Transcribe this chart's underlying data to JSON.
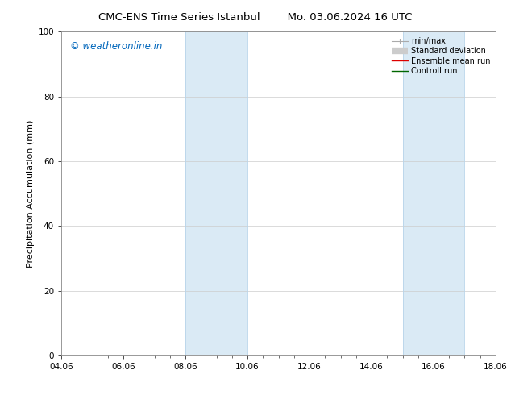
{
  "title_left": "CMC-ENS Time Series Istanbul",
  "title_right": "Mo. 03.06.2024 16 UTC",
  "ylabel": "Precipitation Accumulation (mm)",
  "x_tick_labels": [
    "04.06",
    "06.06",
    "08.06",
    "10.06",
    "12.06",
    "14.06",
    "16.06",
    "18.06"
  ],
  "x_tick_positions": [
    4.06,
    6.06,
    8.06,
    10.06,
    12.06,
    14.06,
    16.06,
    18.06
  ],
  "xlim": [
    4.06,
    18.06
  ],
  "ylim": [
    0,
    100
  ],
  "yticks": [
    0,
    20,
    40,
    60,
    80,
    100
  ],
  "shaded_bands": [
    {
      "x_start": 8.06,
      "x_end": 10.06
    },
    {
      "x_start": 15.06,
      "x_end": 17.06
    }
  ],
  "band_color": "#daeaf5",
  "band_edge_color": "#b8d4ea",
  "watermark_text": "© weatheronline.in",
  "watermark_color": "#0066bb",
  "legend_items": [
    {
      "label": "min/max",
      "color": "#aaaaaa",
      "lw": 1.0
    },
    {
      "label": "Standard deviation",
      "color": "#cccccc",
      "lw": 5
    },
    {
      "label": "Ensemble mean run",
      "color": "#dd0000",
      "lw": 1.2
    },
    {
      "label": "Controll run",
      "color": "#006600",
      "lw": 1.2
    }
  ],
  "bg_color": "#ffffff",
  "grid_color": "#cccccc",
  "title_fontsize": 9.5,
  "label_fontsize": 8,
  "tick_fontsize": 7.5,
  "watermark_fontsize": 8.5,
  "legend_fontsize": 7.0
}
